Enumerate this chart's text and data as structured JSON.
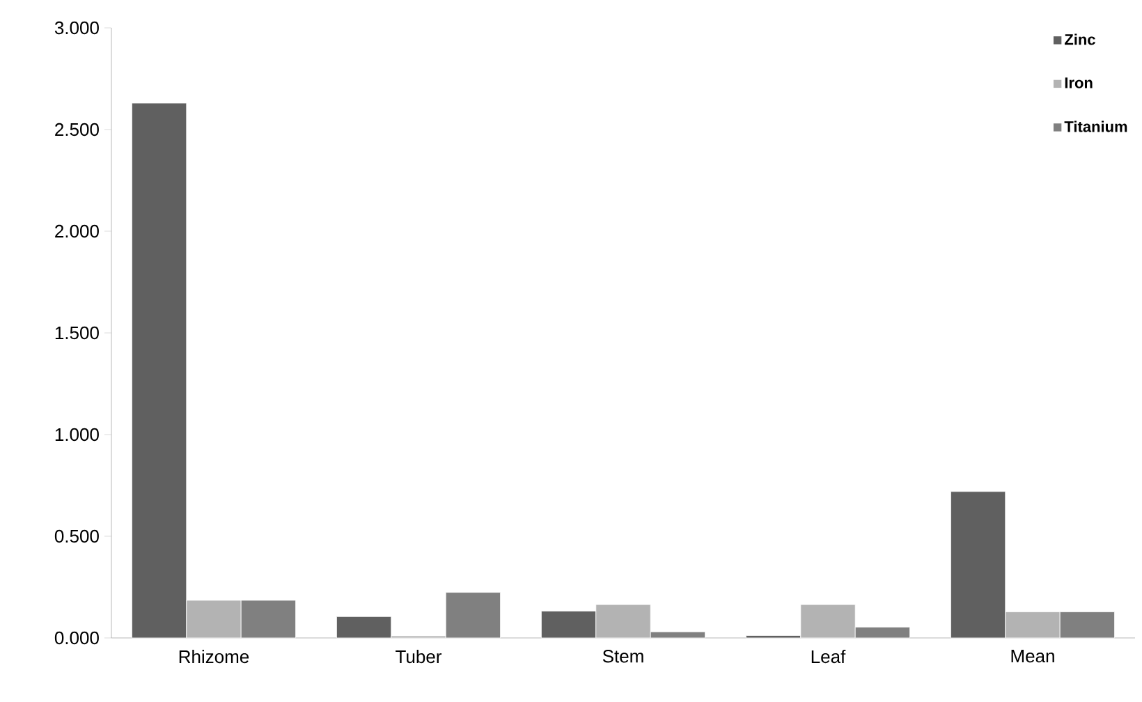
{
  "chart_data": {
    "type": "bar",
    "categories": [
      "Rhizome",
      "Tuber",
      "Stem",
      "Leaf",
      "Mean"
    ],
    "series": [
      {
        "name": "Zinc",
        "color": "#606060",
        "values": [
          2.63,
          0.105,
          0.132,
          0.012,
          0.72
        ]
      },
      {
        "name": "Iron",
        "color": "#b3b3b3",
        "values": [
          0.185,
          0.01,
          0.164,
          0.164,
          0.128
        ]
      },
      {
        "name": "Titanium",
        "color": "#808080",
        "values": [
          0.185,
          0.224,
          0.03,
          0.053,
          0.128
        ]
      }
    ],
    "ylim": [
      0,
      3
    ],
    "yticks": [
      {
        "value": 0,
        "label": "0.000"
      },
      {
        "value": 0.5,
        "label": "0.500"
      },
      {
        "value": 1,
        "label": "1.000"
      },
      {
        "value": 1.5,
        "label": "1.500"
      },
      {
        "value": 2,
        "label": "2.000"
      },
      {
        "value": 2.5,
        "label": "2.500"
      },
      {
        "value": 3,
        "label": "3.000"
      }
    ],
    "grid": false,
    "legend": "top right"
  }
}
